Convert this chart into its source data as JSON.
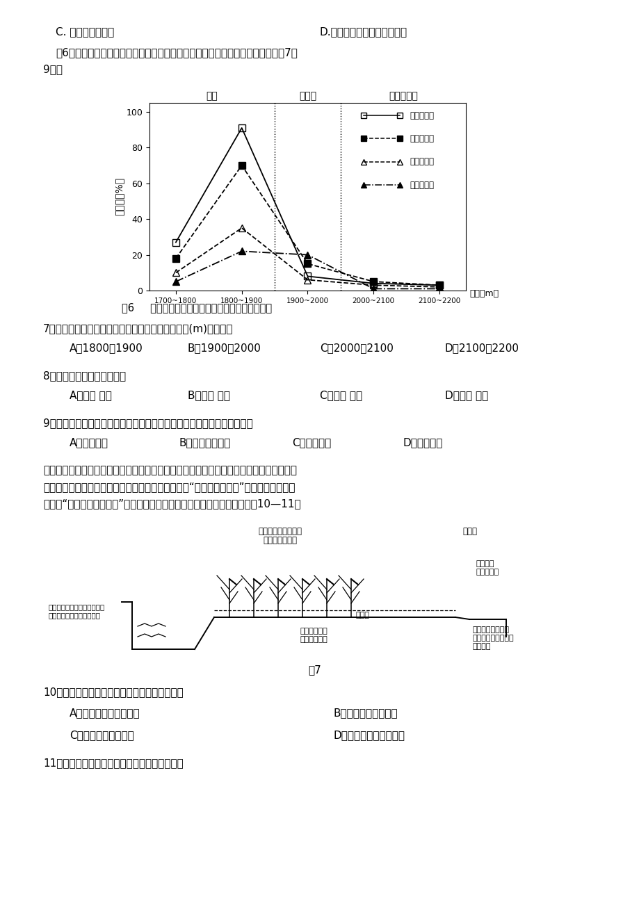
{
  "page_bg": "#ffffff",
  "fig_width": 9.2,
  "fig_height": 13.02,
  "top_text_c": "C. 起到遮阳的作用",
  "top_text_d": "D.减弱噪音对周边环境的影响",
  "intro_line1": "图6为我国季风区某山地不同海拔、不同坡向某森林植被分布百分比图，据此完扐7～",
  "intro_line2": "9题。",
  "chart_zones": [
    "林带",
    "过渡带",
    "高山苔原带"
  ],
  "x_labels": [
    "1700~1800",
    "1800~1900",
    "1900~2000",
    "2000~2100",
    "2100~2200"
  ],
  "x_label_alt": "海拔（m）",
  "y_label": "百分比（%）",
  "series": [
    {
      "name": "阴、迎风坡",
      "values": [
        27,
        91,
        8,
        4,
        3
      ],
      "marker": "s",
      "linestyle": "-",
      "fillstyle": "none"
    },
    {
      "name": "阴、背风坡",
      "values": [
        18,
        70,
        15,
        5,
        3
      ],
      "marker": "s",
      "linestyle": "--",
      "fillstyle": "full"
    },
    {
      "name": "阳、迎风坡",
      "values": [
        10,
        35,
        6,
        3,
        2
      ],
      "marker": "^",
      "linestyle": "--",
      "fillstyle": "none"
    },
    {
      "name": "阳、胍风坡",
      "values": [
        5,
        22,
        20,
        1,
        1
      ],
      "marker": "^",
      "linestyle": "-.",
      "fillstyle": "full"
    }
  ],
  "caption6": "图6     不同海拔、不同坡向某森林植被分布百分比图",
  "q7": "7．该山地自然带垂直带谱中此森林集中分布的海拔(m)最可能是",
  "q7_opts": [
    "A．1800～1900",
    "B．1900～2000",
    "C．2000～2100",
    "D．2100～2200"
  ],
  "q8": "8．该森林植被的生长习性是",
  "q8_opts": [
    "A．喜光 喜湿",
    "B．喜阴 喜湿",
    "C．好热 耐旱",
    "D．耐寒 好旱"
  ],
  "q9": "9．调查发现，近年来高山苔原带中该森林植被增长趋势明显。主要原因是",
  "q9_opts": [
    "A．光照增强",
    "B．水土流失加重",
    "C．气候变暖",
    "D．降水减少"
  ],
  "passage_lines": [
    "浙江东南部青田县地处瓯江中下游地区。地形岎岁，山地丘陵地貌，属亚热带季风气候区，",
    "境内溪谷纵横，烟江秀丽，山峦连绵，奇峰挺拔素有“九山半水半分田”之称，境内形成了",
    "独特的“青田稻鱼共生系统”，被列为世界四大农业遗产之一，读示意图回等10—11题"
  ],
  "q10": "10．保障该种农业生产模式稳定发展主要措施是",
  "q10_opts_left": [
    "A．进行农业结构的调整",
    "C．兴修排灸水利设施"
  ],
  "q10_opts_right": [
    "B．修建温室改善热量",
    "D．拓展市场推进产业化"
  ],
  "q11": "11．从生态可持续发展的角度评价，该农业模式"
}
